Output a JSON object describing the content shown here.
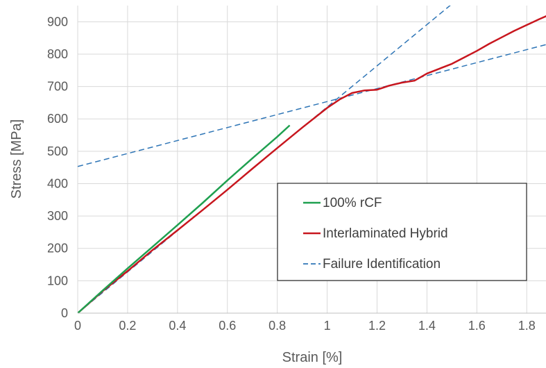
{
  "chart_data": {
    "type": "line",
    "title": "",
    "xlabel": "Strain [%]",
    "ylabel": "Stress [MPa]",
    "xlim": [
      0,
      1.88
    ],
    "ylim": [
      0,
      950
    ],
    "xticks": [
      0,
      0.2,
      0.4,
      0.6,
      0.8,
      1,
      1.2,
      1.4,
      1.6,
      1.8
    ],
    "xtick_labels": [
      "0",
      "0.2",
      "0.4",
      "0.6",
      "0.8",
      "1",
      "1.2",
      "1.4",
      "1.6",
      "1.8"
    ],
    "yticks": [
      0,
      100,
      200,
      300,
      400,
      500,
      600,
      700,
      800,
      900
    ],
    "ytick_labels": [
      "0",
      "100",
      "200",
      "300",
      "400",
      "500",
      "600",
      "700",
      "800",
      "900"
    ],
    "grid": true,
    "legend_position": "center-right",
    "series": [
      {
        "name": "100% rCF",
        "color": "#1fa050",
        "style": "solid",
        "points": [
          [
            0,
            0
          ],
          [
            0.1,
            70
          ],
          [
            0.2,
            138
          ],
          [
            0.3,
            205
          ],
          [
            0.4,
            272
          ],
          [
            0.5,
            340
          ],
          [
            0.6,
            410
          ],
          [
            0.7,
            478
          ],
          [
            0.8,
            545
          ],
          [
            0.85,
            580
          ]
        ]
      },
      {
        "name": "Interlaminated Hybrid",
        "color": "#c8161e",
        "style": "solid",
        "points": [
          [
            0,
            0
          ],
          [
            0.1,
            68
          ],
          [
            0.2,
            130
          ],
          [
            0.3,
            195
          ],
          [
            0.4,
            256
          ],
          [
            0.5,
            318
          ],
          [
            0.6,
            381
          ],
          [
            0.7,
            446
          ],
          [
            0.8,
            510
          ],
          [
            0.9,
            573
          ],
          [
            1.0,
            634
          ],
          [
            1.05,
            660
          ],
          [
            1.1,
            680
          ],
          [
            1.15,
            688
          ],
          [
            1.2,
            690
          ],
          [
            1.25,
            703
          ],
          [
            1.3,
            712
          ],
          [
            1.35,
            718
          ],
          [
            1.4,
            740
          ],
          [
            1.45,
            755
          ],
          [
            1.5,
            770
          ],
          [
            1.55,
            790
          ],
          [
            1.6,
            810
          ],
          [
            1.65,
            832
          ],
          [
            1.7,
            852
          ],
          [
            1.75,
            872
          ],
          [
            1.8,
            890
          ],
          [
            1.85,
            908
          ],
          [
            1.88,
            918
          ]
        ]
      },
      {
        "name": "Failure Identification",
        "color": "#2e75b6",
        "style": "dashed",
        "points": [
          [
            0,
            0
          ],
          [
            1.5,
            955
          ]
        ]
      },
      {
        "name": "",
        "color": "#2e75b6",
        "style": "dashed",
        "points": [
          [
            0,
            453
          ],
          [
            1.88,
            830
          ]
        ]
      }
    ]
  }
}
